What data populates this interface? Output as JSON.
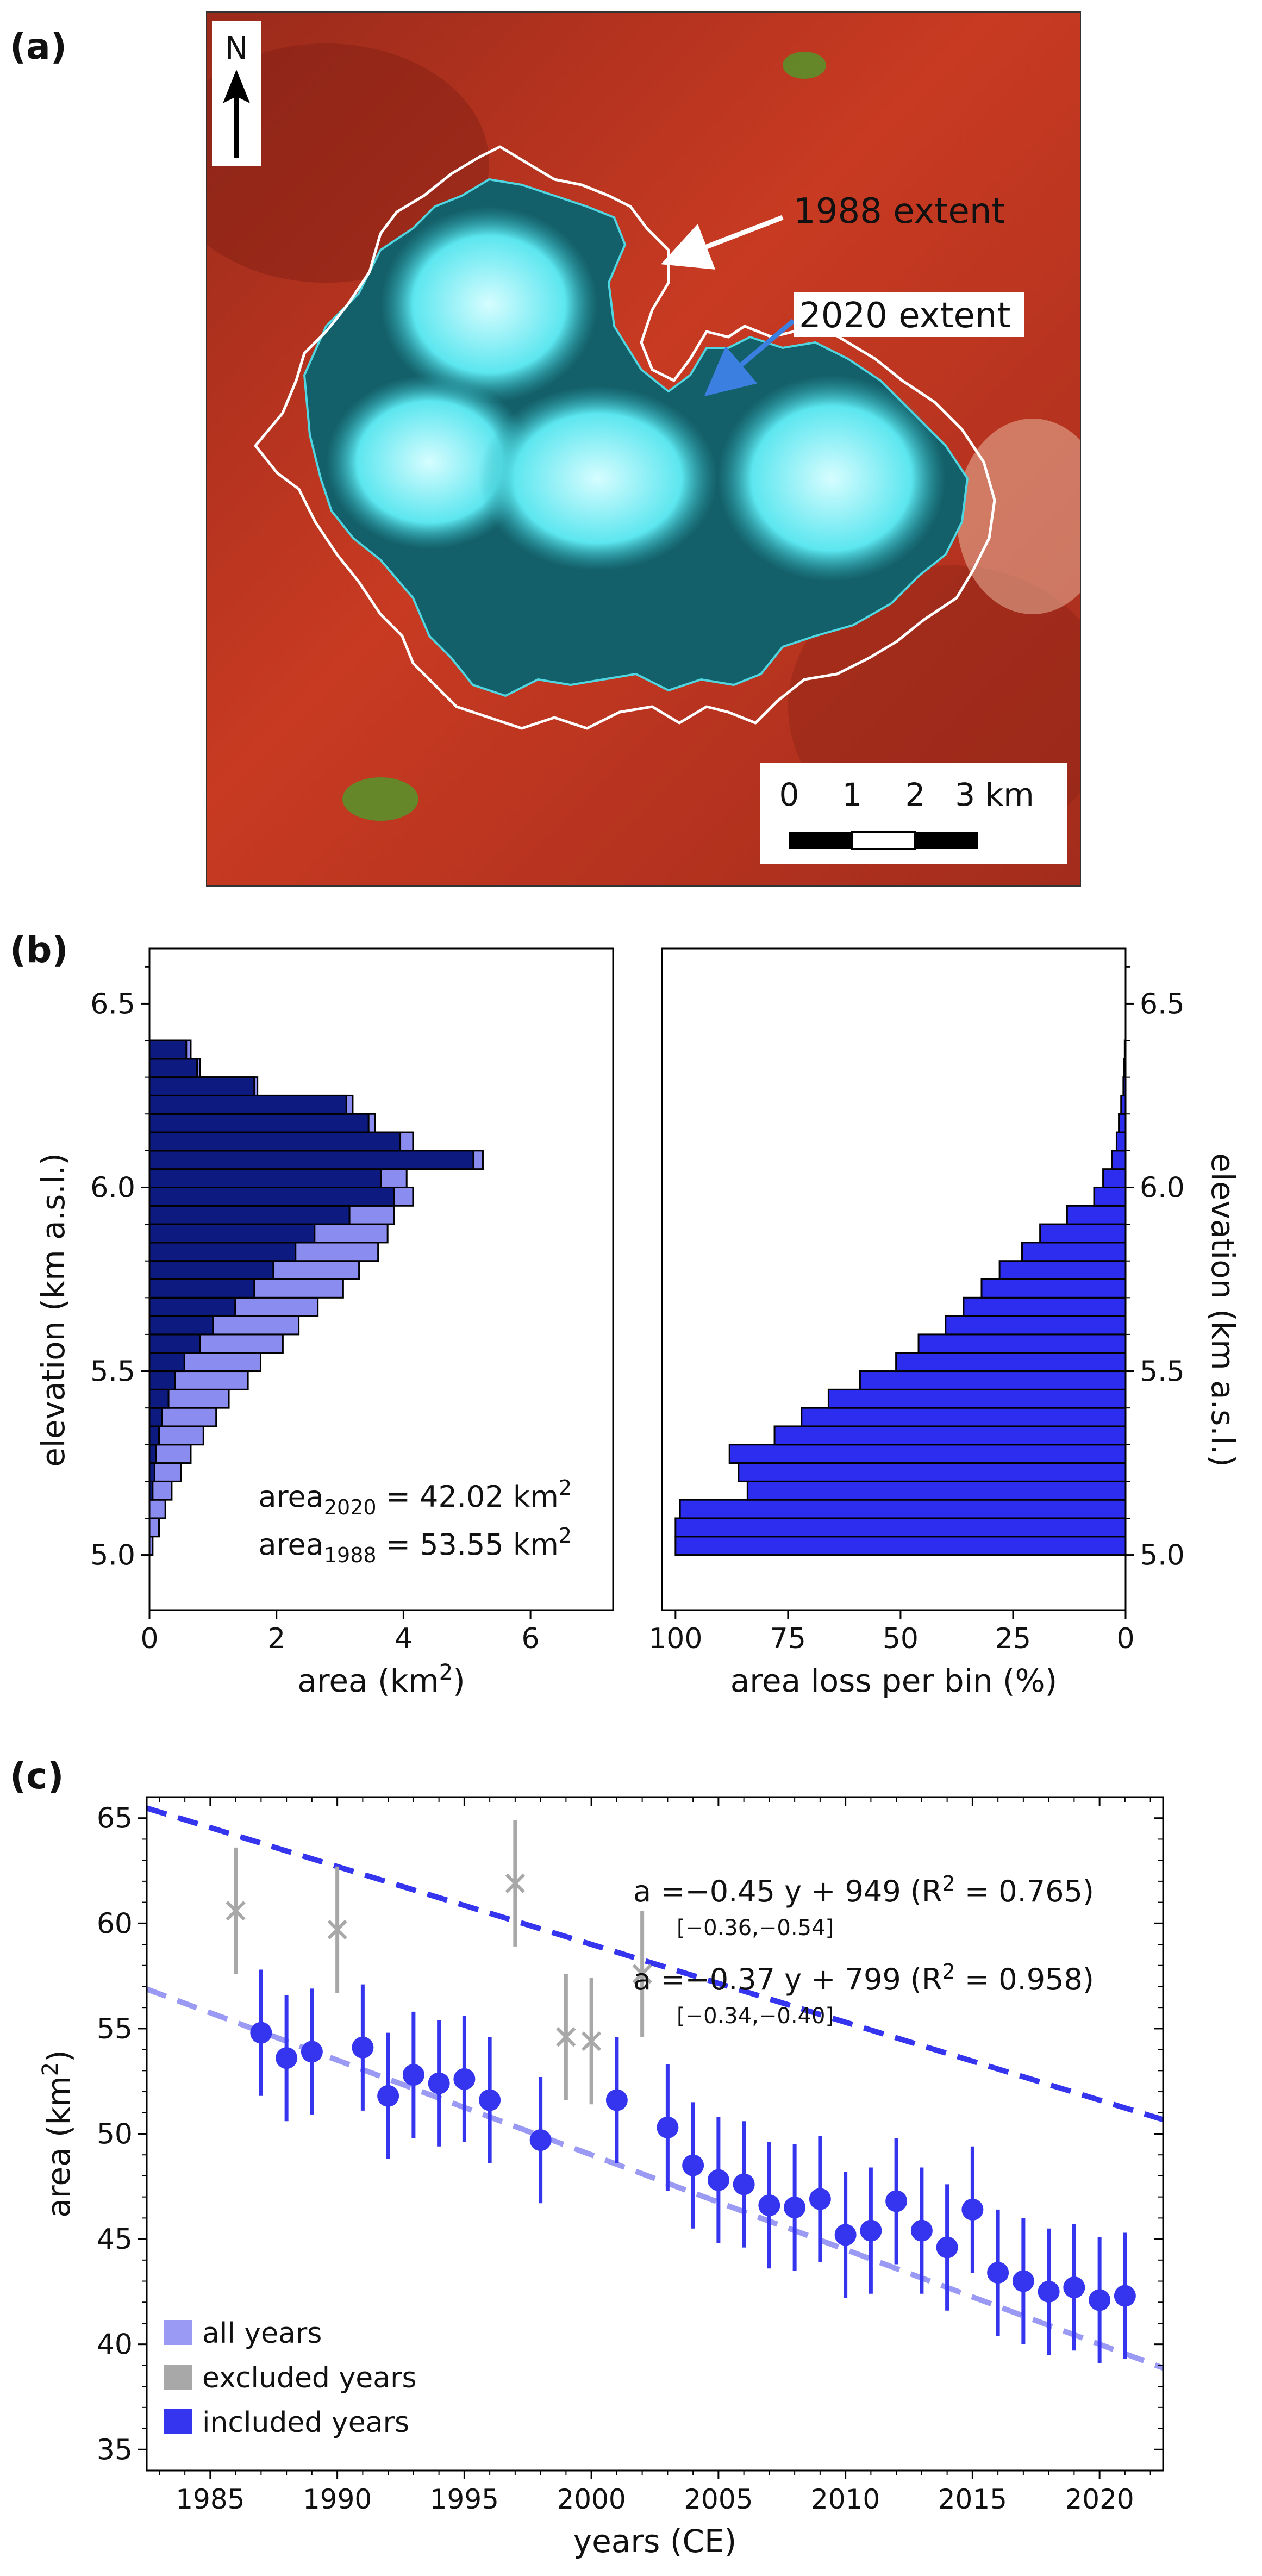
{
  "panel_a": {
    "label": "(a)",
    "north_label": "N",
    "annot_1988": "1988 extent",
    "annot_2020": "2020 extent",
    "scale_labels": [
      "0",
      "1",
      "2",
      "3 km"
    ],
    "colors": {
      "terrain": "#b8321f",
      "ice": "#5ee6e6",
      "outline_1988": "#ffffff",
      "arrow_2020": "#3b7fe0",
      "text_2020": "#2a74d6"
    }
  },
  "panel_b": {
    "label": "(b)",
    "ylabel_left": "elevation (km a.s.l.)",
    "ylabel_right": "elevation (km a.s.l.)",
    "legend_2020": "area",
    "legend_2020_sub": "2020",
    "legend_2020_value": " = 42.02 km",
    "legend_1988": "area",
    "legend_1988_sub": "1988",
    "legend_1988_value": " = 53.55 km",
    "legend_sup": "2",
    "colors": {
      "area_2020": "#0d1a80",
      "area_1988": "#8b8cf0",
      "loss": "#2d2df0"
    }
  },
  "panel_c": {
    "label": "(c)",
    "fit_all": "a =−0.45 y + 949  (R",
    "fit_all_r2": " = 0.765)",
    "fit_all_ci": "[−0.36,−0.54]",
    "fit_inc": "a =−0.37 y + 799  (R",
    "fit_inc_r2": " = 0.958)",
    "fit_inc_ci": "[−0.34,−0.40]",
    "sup2": "2",
    "legend": [
      {
        "label": "all years",
        "color": "#9a9af5"
      },
      {
        "label": "excluded years",
        "color": "#a8a8a8"
      },
      {
        "label": "included years",
        "color": "#3535f0"
      }
    ]
  },
  "chart_data": [
    {
      "type": "bar",
      "orientation": "horizontal",
      "xlabel": "area (km",
      "xlabel_sup": "2",
      "xlabel_end": ")",
      "ylabel": "elevation (km a.s.l.)",
      "xlim": [
        0,
        7.3
      ],
      "ylim": [
        4.85,
        6.65
      ],
      "xticks": [
        0,
        2,
        4,
        6
      ],
      "yticks": [
        5.0,
        5.5,
        6.0,
        6.5
      ],
      "ytick_labels": [
        "5.0",
        "5.5",
        "6.0",
        "6.5"
      ],
      "bin_width": 0.05,
      "bin_bottoms": [
        5.0,
        5.05,
        5.1,
        5.15,
        5.2,
        5.25,
        5.3,
        5.35,
        5.4,
        5.45,
        5.5,
        5.55,
        5.6,
        5.65,
        5.7,
        5.75,
        5.8,
        5.85,
        5.9,
        5.95,
        6.0,
        6.05,
        6.1,
        6.15,
        6.2,
        6.25,
        6.3,
        6.35
      ],
      "series": [
        {
          "name": "area1988",
          "values": [
            0.05,
            0.15,
            0.25,
            0.35,
            0.5,
            0.65,
            0.85,
            1.05,
            1.25,
            1.55,
            1.75,
            2.1,
            2.35,
            2.65,
            3.05,
            3.3,
            3.6,
            3.75,
            3.85,
            4.15,
            4.05,
            5.25,
            4.15,
            3.55,
            3.2,
            1.7,
            0.8,
            0.65
          ]
        },
        {
          "name": "area2020",
          "values": [
            0.0,
            0.0,
            0.0,
            0.05,
            0.08,
            0.1,
            0.15,
            0.2,
            0.3,
            0.4,
            0.55,
            0.8,
            1.0,
            1.35,
            1.65,
            1.95,
            2.3,
            2.6,
            3.15,
            3.85,
            3.65,
            5.1,
            3.95,
            3.45,
            3.1,
            1.65,
            0.75,
            0.58
          ]
        }
      ]
    },
    {
      "type": "bar",
      "orientation": "horizontal",
      "xlabel": "area loss per bin (%)",
      "xlim": [
        103,
        0
      ],
      "ylim": [
        4.85,
        6.65
      ],
      "xticks": [
        100,
        75,
        50,
        25,
        0
      ],
      "yticks": [
        5.0,
        5.5,
        6.0,
        6.5
      ],
      "ytick_labels": [
        "5.0",
        "5.5",
        "6.0",
        "6.5"
      ],
      "bin_width": 0.05,
      "bin_bottoms": [
        5.0,
        5.05,
        5.1,
        5.15,
        5.2,
        5.25,
        5.3,
        5.35,
        5.4,
        5.45,
        5.5,
        5.55,
        5.6,
        5.65,
        5.7,
        5.75,
        5.8,
        5.85,
        5.9,
        5.95,
        6.0,
        6.05,
        6.1,
        6.15,
        6.2,
        6.25,
        6.3,
        6.35
      ],
      "values": [
        100,
        100,
        99,
        84,
        86,
        88,
        78,
        72,
        66,
        59,
        51,
        46,
        40,
        36,
        32,
        28,
        23,
        19,
        13,
        7,
        5,
        3,
        2,
        1.5,
        1,
        0.5,
        0.3,
        0.2
      ]
    },
    {
      "type": "scatter",
      "xlabel": "years (CE)",
      "ylabel": "area (km",
      "ylabel_sup": "2",
      "ylabel_end": ")",
      "xlim": [
        1982.5,
        2022.5
      ],
      "ylim": [
        34,
        66
      ],
      "xticks": [
        1985,
        1990,
        1995,
        2000,
        2005,
        2010,
        2015,
        2020
      ],
      "yticks": [
        35,
        40,
        45,
        50,
        55,
        60,
        65
      ],
      "error_bar": 3.0,
      "series": [
        {
          "name": "excluded years",
          "x": [
            1986,
            1990,
            1997,
            1999,
            2000,
            2002
          ],
          "y": [
            60.6,
            59.7,
            61.9,
            54.6,
            54.4,
            57.6
          ]
        },
        {
          "name": "included years",
          "x": [
            1987,
            1988,
            1989,
            1991,
            1992,
            1993,
            1994,
            1995,
            1996,
            1998,
            2001,
            2003,
            2004,
            2005,
            2006,
            2007,
            2008,
            2009,
            2010,
            2011,
            2012,
            2013,
            2014,
            2015,
            2016,
            2017,
            2018,
            2019,
            2020,
            2021
          ],
          "y": [
            54.8,
            53.6,
            53.9,
            54.1,
            51.8,
            52.8,
            52.4,
            52.6,
            51.6,
            49.7,
            51.6,
            50.3,
            48.5,
            47.8,
            47.6,
            46.6,
            46.5,
            46.9,
            45.2,
            45.4,
            46.8,
            45.4,
            44.6,
            46.4,
            43.4,
            43.0,
            42.5,
            42.7,
            42.1,
            42.3
          ]
        }
      ],
      "fits": [
        {
          "name": "all years",
          "slope": -0.45,
          "intercept": 949
        },
        {
          "name": "included years",
          "slope": -0.37,
          "intercept": 799
        }
      ]
    }
  ]
}
